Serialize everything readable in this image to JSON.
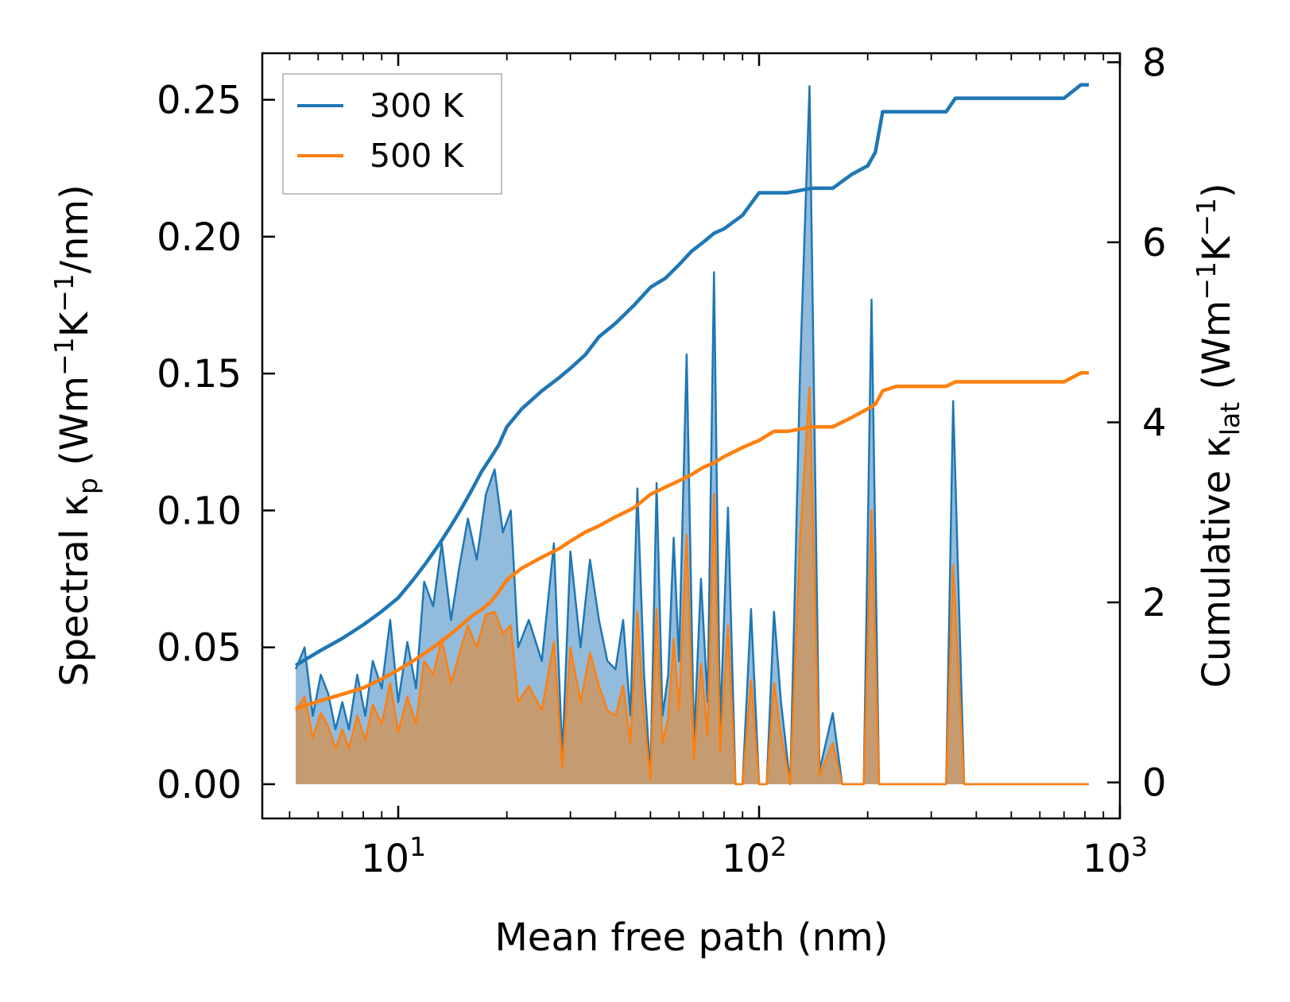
{
  "chart_data": {
    "type": "line",
    "xlabel": "Mean free path (nm)",
    "ylabel_left": {
      "main": "Spectral κ",
      "sub": "p",
      "unit_open": " (Wm",
      "sup1": "−1",
      "mid": "K",
      "sup2": "−1",
      "tail": "/nm)"
    },
    "ylabel_right": {
      "main": "Cumulative κ",
      "sub": "lat",
      "unit_open": " (Wm",
      "sup1": "−1",
      "mid": "K",
      "sup2": "−1",
      "tail": ")"
    },
    "xscale": "log",
    "xlim": [
      4.2,
      1000
    ],
    "ylim_left": [
      -0.0125,
      0.267
    ],
    "ylim_right": [
      -0.4,
      8.1
    ],
    "x_ticks": [
      {
        "value": 10,
        "base": "10",
        "exp": "1"
      },
      {
        "value": 100,
        "base": "10",
        "exp": "2"
      },
      {
        "value": 1000,
        "base": "10",
        "exp": "3"
      }
    ],
    "y_ticks_left": [
      "0.00",
      "0.05",
      "0.10",
      "0.15",
      "0.20",
      "0.25"
    ],
    "y_ticks_right": [
      "0",
      "2",
      "4",
      "6",
      "8"
    ],
    "legend": {
      "position": "top-left",
      "entries": [
        "300 K",
        "500 K"
      ]
    },
    "colors": {
      "300K": "#1f77b4",
      "500K": "#ff7f0e",
      "fill300": "#7fafd6",
      "fill500": "#c89a6c"
    },
    "spectral": {
      "x": [
        5.2,
        5.5,
        5.8,
        6.1,
        6.4,
        6.7,
        7.0,
        7.3,
        7.7,
        8.1,
        8.5,
        9.0,
        9.5,
        10.0,
        10.6,
        11.2,
        11.8,
        12.5,
        13.2,
        14.0,
        14.8,
        15.6,
        16.5,
        17.5,
        18.5,
        19.5,
        20.5,
        21.5,
        23.0,
        25.0,
        27.0,
        28.5,
        30.0,
        32.0,
        34.0,
        36.0,
        38.0,
        40.0,
        42.0,
        44.0,
        46.0,
        48.0,
        50.0,
        52.0,
        54.0,
        56.0,
        58.0,
        60.0,
        63.0,
        66.0,
        69.0,
        72.0,
        75.0,
        78.0,
        82.0,
        86.0,
        90.0,
        95.0,
        100.0,
        105.0,
        110.0,
        115.0,
        122.0,
        130.0,
        138.0,
        147.0,
        160.0,
        170.0,
        180.0,
        195.0,
        205.0,
        215.0,
        225.0,
        240.0,
        260.0,
        300.0,
        330.0,
        345.0,
        370.0,
        500.0,
        700.0,
        760.0,
        790.0,
        820.0
      ],
      "k300": [
        0.042,
        0.05,
        0.025,
        0.04,
        0.033,
        0.02,
        0.03,
        0.02,
        0.04,
        0.025,
        0.045,
        0.035,
        0.06,
        0.03,
        0.052,
        0.035,
        0.074,
        0.065,
        0.088,
        0.06,
        0.08,
        0.097,
        0.082,
        0.106,
        0.115,
        0.092,
        0.1,
        0.05,
        0.06,
        0.045,
        0.088,
        0.01,
        0.085,
        0.05,
        0.082,
        0.06,
        0.045,
        0.042,
        0.06,
        0.025,
        0.108,
        0.04,
        0.003,
        0.11,
        0.025,
        0.04,
        0.09,
        0.045,
        0.157,
        0.015,
        0.075,
        0.03,
        0.187,
        0.02,
        0.101,
        0.0,
        0.0,
        0.064,
        0.0,
        0.0,
        0.063,
        0.03,
        0.0,
        0.152,
        0.255,
        0.005,
        0.026,
        0.0,
        0.0,
        0.0,
        0.177,
        0.0,
        0.0,
        0.0,
        0.0,
        0.0,
        0.0,
        0.14,
        0.0,
        0.0,
        0.0,
        0.0,
        0.0,
        0.0
      ],
      "k500": [
        0.027,
        0.032,
        0.017,
        0.026,
        0.021,
        0.013,
        0.02,
        0.013,
        0.025,
        0.016,
        0.029,
        0.022,
        0.037,
        0.019,
        0.032,
        0.022,
        0.045,
        0.04,
        0.053,
        0.037,
        0.048,
        0.058,
        0.05,
        0.062,
        0.063,
        0.055,
        0.058,
        0.03,
        0.036,
        0.027,
        0.052,
        0.006,
        0.05,
        0.03,
        0.048,
        0.036,
        0.027,
        0.025,
        0.036,
        0.015,
        0.063,
        0.024,
        0.002,
        0.064,
        0.015,
        0.024,
        0.053,
        0.027,
        0.091,
        0.009,
        0.044,
        0.018,
        0.106,
        0.012,
        0.058,
        0.0,
        0.0,
        0.038,
        0.0,
        0.0,
        0.037,
        0.018,
        0.0,
        0.09,
        0.145,
        0.003,
        0.015,
        0.0,
        0.0,
        0.0,
        0.1,
        0.0,
        0.0,
        0.0,
        0.0,
        0.0,
        0.0,
        0.08,
        0.0,
        0.0,
        0.0,
        0.0,
        0.0,
        0.0
      ]
    },
    "cumulative": {
      "x": [
        5.2,
        6.0,
        7.0,
        8.0,
        9.0,
        10.0,
        11.0,
        12.0,
        13.0,
        14.0,
        15.0,
        16.0,
        17.0,
        18.0,
        19.0,
        20.0,
        22.0,
        25.0,
        28.0,
        30.0,
        33.0,
        36.0,
        40.0,
        45.0,
        50.0,
        55.0,
        60.0,
        65.0,
        70.0,
        75.0,
        80.0,
        90.0,
        100.0,
        110.0,
        120.0,
        140.0,
        160.0,
        180.0,
        200.0,
        210.0,
        220.0,
        240.0,
        330.0,
        350.0,
        700.0,
        780.0,
        820.0
      ],
      "c300": [
        1.3,
        1.45,
        1.6,
        1.75,
        1.9,
        2.05,
        2.25,
        2.45,
        2.65,
        2.85,
        3.05,
        3.25,
        3.45,
        3.6,
        3.75,
        3.95,
        4.15,
        4.35,
        4.5,
        4.6,
        4.75,
        4.95,
        5.1,
        5.3,
        5.5,
        5.6,
        5.75,
        5.9,
        6.0,
        6.1,
        6.15,
        6.3,
        6.55,
        6.55,
        6.55,
        6.6,
        6.6,
        6.75,
        6.85,
        7.0,
        7.45,
        7.45,
        7.45,
        7.6,
        7.6,
        7.75,
        7.75
      ],
      "c500": [
        0.82,
        0.9,
        0.98,
        1.05,
        1.15,
        1.25,
        1.35,
        1.45,
        1.55,
        1.65,
        1.75,
        1.85,
        1.92,
        2.0,
        2.12,
        2.25,
        2.38,
        2.5,
        2.6,
        2.68,
        2.78,
        2.85,
        2.95,
        3.05,
        3.2,
        3.28,
        3.35,
        3.42,
        3.5,
        3.55,
        3.62,
        3.72,
        3.8,
        3.9,
        3.9,
        3.95,
        3.95,
        4.05,
        4.15,
        4.2,
        4.35,
        4.4,
        4.4,
        4.45,
        4.45,
        4.55,
        4.55
      ]
    }
  }
}
